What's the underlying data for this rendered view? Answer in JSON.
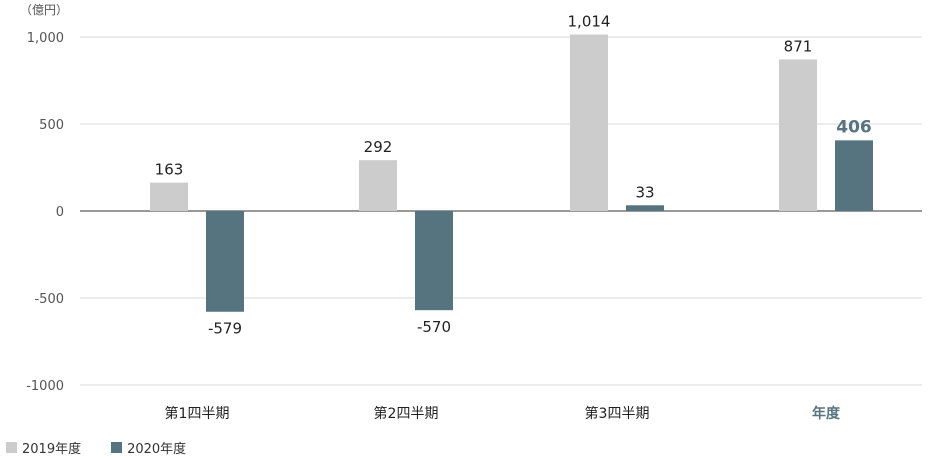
{
  "chart_data": {
    "type": "bar",
    "unit_label": "（億円）",
    "categories": [
      "第1四半期",
      "第2四半期",
      "第3四半期",
      "年度"
    ],
    "y_ticks": [
      "1,000",
      "500",
      "0",
      "-500",
      "-1000"
    ],
    "y_tick_values": [
      1000,
      500,
      0,
      -500,
      -1000
    ],
    "ylim": [
      -1070,
      1100
    ],
    "grid": true,
    "legend": "bottom-left",
    "series": [
      {
        "name": "2019年度",
        "color": "#cccccc",
        "values": [
          163,
          292,
          1014,
          871
        ],
        "labels": [
          "163",
          "292",
          "1,014",
          "871"
        ]
      },
      {
        "name": "2020年度",
        "color": "#557480",
        "values": [
          -579,
          -570,
          33,
          406
        ],
        "labels": [
          "-579",
          "-570",
          "33",
          "406"
        ]
      }
    ],
    "highlight_category": "年度",
    "highlight_color": "#557480"
  }
}
